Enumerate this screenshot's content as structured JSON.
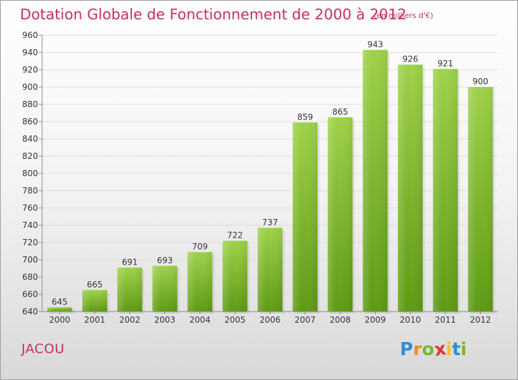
{
  "chart_title": "Dotation Globale de Fonctionnement de 2000 à 2012",
  "chart_unit": "(en milliers d'€)",
  "commune": "JACOU",
  "brand": {
    "letters": [
      "P",
      "r",
      "o",
      "x",
      "i",
      "t",
      "i"
    ],
    "colors": [
      "#2f8fd2",
      "#f28c1a",
      "#7ab82a",
      "#e2372d",
      "#f2c21a",
      "#2f8fd2",
      "#7ab82a"
    ]
  },
  "colors": {
    "bar_top": "#9fd24a",
    "bar_bottom": "#5e9a14",
    "title": "#c8305a",
    "grid": "#dcdcdc"
  },
  "chart_data": {
    "type": "bar",
    "title": "Dotation Globale de Fonctionnement de 2000 à 2012",
    "subtitle": "(en milliers d'€)",
    "categories": [
      "2000",
      "2001",
      "2002",
      "2003",
      "2004",
      "2005",
      "2006",
      "2007",
      "2008",
      "2009",
      "2010",
      "2011",
      "2012"
    ],
    "values": [
      645,
      665,
      691,
      693,
      709,
      722,
      737,
      859,
      865,
      943,
      926,
      921,
      900
    ],
    "ylim": [
      640,
      960
    ],
    "yticks": [
      640,
      660,
      680,
      700,
      720,
      740,
      760,
      780,
      800,
      820,
      840,
      860,
      880,
      900,
      920,
      940,
      960
    ],
    "grid": true
  }
}
